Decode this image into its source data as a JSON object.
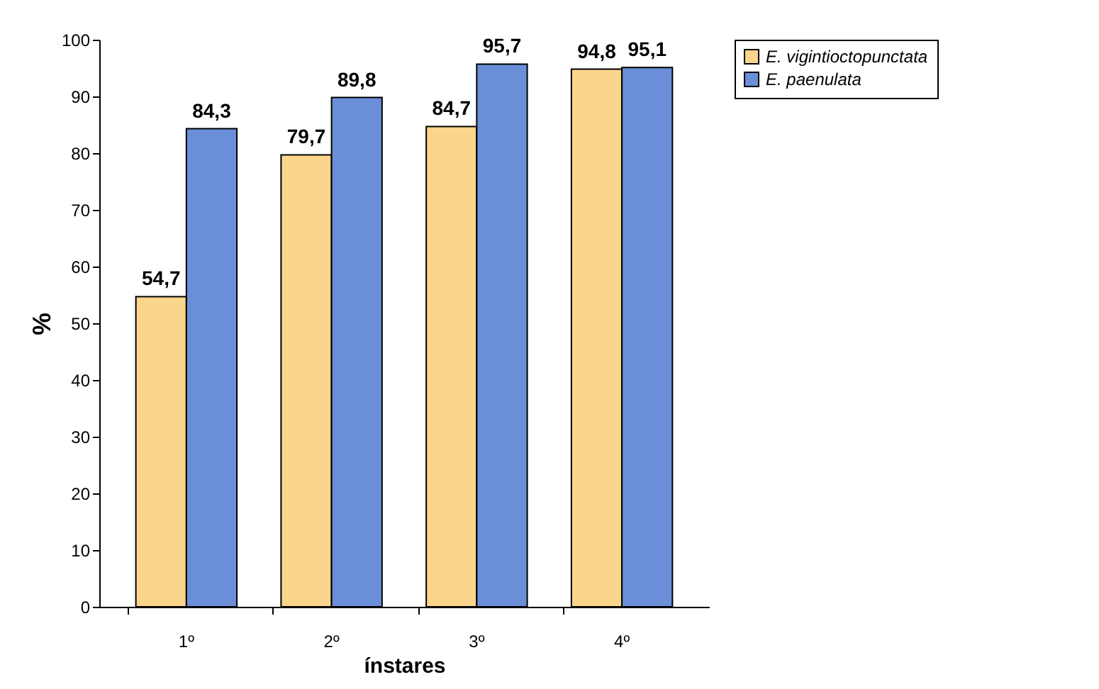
{
  "chart_data": {
    "type": "bar",
    "xlabel": "ínstares",
    "ylabel": "%",
    "categories": [
      "1º",
      "2º",
      "3º",
      "4º"
    ],
    "series": [
      {
        "name": "E. vigintioctopunctata",
        "color": "#fcd58c",
        "values": [
          54.7,
          79.7,
          84.7,
          94.8
        ],
        "value_labels": [
          "54,7",
          "79,7",
          "84,7",
          "94,8"
        ]
      },
      {
        "name": "E. paenulata",
        "color": "#6a8fd8",
        "values": [
          84.3,
          89.8,
          95.7,
          95.1
        ],
        "value_labels": [
          "84,3",
          "89,8",
          "95,7",
          "95,1"
        ]
      }
    ],
    "ylim": [
      0,
      100
    ],
    "yticks": [
      0,
      10,
      20,
      30,
      40,
      50,
      60,
      70,
      80,
      90,
      100
    ],
    "grid": false,
    "legend": "right"
  }
}
